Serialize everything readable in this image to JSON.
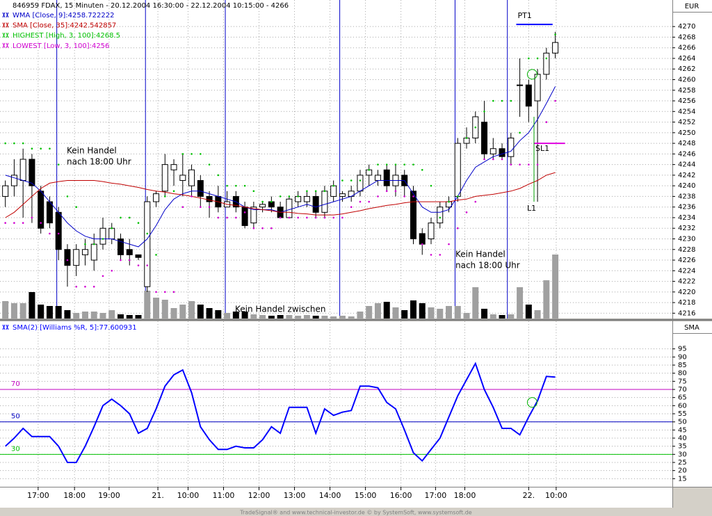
{
  "footer": "TradeSignal® and www.technical-investor.de © by SystemSoft, www.systemsoft.de",
  "chart_data": [
    {
      "type": "candlestick",
      "title": "846959  FDAX, 15 Minuten - 20.12.2004 16:30:00 - 22.12.2004 10:15:00 - 4266",
      "axis_label": "EUR",
      "xlim": [
        -0.6,
        75.2
      ],
      "ylim": [
        4215,
        4275
      ],
      "yticks": [
        4216,
        4218,
        4220,
        4222,
        4224,
        4226,
        4228,
        4230,
        4232,
        4234,
        4236,
        4238,
        4240,
        4242,
        4244,
        4246,
        4248,
        4250,
        4252,
        4254,
        4256,
        4258,
        4260,
        4262,
        4264,
        4266,
        4268,
        4270
      ],
      "grid": true,
      "open": [
        4238,
        4240,
        4241,
        4245,
        4239,
        4237,
        4235,
        4228,
        4225,
        4227,
        4226,
        4229,
        4230,
        4230,
        4228,
        4227,
        4221,
        4237,
        4239,
        4243,
        4241,
        4240,
        4241,
        4238,
        4238,
        4236,
        4238,
        4236,
        4233,
        4236,
        4237,
        4236,
        4234,
        4237,
        4237,
        4238,
        4235,
        4238,
        4238,
        4238,
        4239,
        4242,
        4241,
        4243,
        4240,
        4242,
        4239,
        4231,
        4230,
        4233,
        4236,
        4238,
        4248,
        4249,
        4252,
        4246,
        4247,
        4245.5,
        4259,
        4259,
        4256,
        4261,
        4265
      ],
      "high": [
        4241,
        4245,
        4247,
        4246,
        4240,
        4238,
        4236,
        4229,
        4229,
        4230,
        4231,
        4234,
        4233,
        4231,
        4230,
        4227,
        4238,
        4239,
        4246,
        4245,
        4246,
        4244,
        4242,
        4239,
        4240,
        4239,
        4239,
        4237,
        4237,
        4237,
        4238,
        4237,
        4238,
        4239,
        4239,
        4239,
        4240,
        4241,
        4239,
        4240,
        4243,
        4244,
        4243,
        4244,
        4244,
        4243,
        4240,
        4232,
        4234,
        4237,
        4238,
        4249,
        4251,
        4254,
        4256,
        4249,
        4248,
        4250,
        4264,
        4260,
        4262,
        4266,
        4269
      ],
      "low": [
        4236,
        4238,
        4234,
        4233,
        4231,
        4232,
        4226,
        4221,
        4223,
        4225,
        4224,
        4228,
        4229,
        4226,
        4225,
        4226,
        4220,
        4236,
        4238,
        4240,
        4238,
        4238,
        4236,
        4234,
        4235,
        4236,
        4235,
        4232,
        4232,
        4235,
        4235,
        4234,
        4234,
        4236,
        4236,
        4234,
        4234,
        4237,
        4237,
        4237,
        4238,
        4240,
        4240,
        4239,
        4238,
        4238,
        4229,
        4227,
        4229,
        4232,
        4235,
        4237,
        4247,
        4248,
        4245,
        4245,
        4245,
        4244,
        4253,
        4252,
        4237,
        4260,
        4264
      ],
      "close": [
        4240,
        4242,
        4245,
        4240,
        4232,
        4233,
        4228,
        4225,
        4228,
        4228,
        4229,
        4232,
        4232,
        4227,
        4227,
        4226.5,
        4237,
        4238.5,
        4244,
        4244,
        4242,
        4243,
        4238,
        4237,
        4236,
        4237,
        4236,
        4232.5,
        4236,
        4236.5,
        4236,
        4234,
        4237.5,
        4238,
        4238,
        4235,
        4239,
        4240,
        4238.5,
        4239,
        4242,
        4243,
        4242,
        4240,
        4242,
        4240,
        4230,
        4229,
        4233,
        4236,
        4237,
        4248,
        4249,
        4253,
        4246,
        4247,
        4245.5,
        4249,
        4259,
        4255,
        4261,
        4265,
        4267
      ],
      "up_color": "#ffffff",
      "down_color": "#000000",
      "volume": [
        25,
        22,
        22,
        38,
        20,
        18,
        18,
        12,
        8,
        10,
        10,
        8,
        12,
        6,
        5,
        5,
        40,
        30,
        27,
        15,
        20,
        25,
        20,
        15,
        12,
        8,
        10,
        10,
        6,
        5,
        4,
        5,
        5,
        4,
        5,
        4,
        4,
        3,
        4,
        3,
        10,
        18,
        22,
        24,
        16,
        12,
        26,
        22,
        16,
        14,
        18,
        18,
        8,
        45,
        14,
        6,
        5,
        6,
        45,
        20,
        12,
        55,
        92
      ],
      "volume_lim": [
        0,
        100
      ],
      "volume_colors": {
        "up": "#a0a0a0",
        "down": "#000000"
      },
      "series": [
        {
          "name": "WMA [Close, 9]:4258.722222",
          "color": "#0000c8",
          "style": "line",
          "values": [
            4242,
            4241.5,
            4241,
            4240.5,
            4239,
            4237,
            4235,
            4233,
            4231.5,
            4230.5,
            4230,
            4230,
            4230,
            4229.5,
            4229,
            4228.5,
            4230,
            4232.5,
            4235.5,
            4237.5,
            4238.5,
            4239,
            4239,
            4238.5,
            4238,
            4237.5,
            4237,
            4236,
            4235.5,
            4235.5,
            4235.5,
            4235,
            4235.5,
            4236,
            4236.5,
            4236,
            4236.5,
            4237,
            4237.5,
            4238,
            4239,
            4240,
            4241,
            4241,
            4241,
            4241,
            4238.5,
            4236,
            4235,
            4235,
            4235.5,
            4238,
            4241,
            4243.5,
            4244.5,
            4245.5,
            4246,
            4246.5,
            4248.5,
            4250,
            4252.5,
            4255.5,
            4258.7
          ]
        },
        {
          "name": "SMA [Close, 35]:4242.542857",
          "color": "#c00000",
          "style": "line",
          "values": [
            4234,
            4235,
            4236.5,
            4238,
            4239.5,
            4240.5,
            4240.8,
            4241,
            4241,
            4241,
            4241,
            4240.8,
            4240.5,
            4240.3,
            4240,
            4239.7,
            4239.3,
            4239,
            4238.8,
            4238.5,
            4238.3,
            4238,
            4237.7,
            4237.3,
            4237,
            4236.5,
            4236.3,
            4236,
            4235.7,
            4235.5,
            4235.3,
            4235,
            4235,
            4234.8,
            4234.7,
            4234.5,
            4234.5,
            4234.5,
            4234.7,
            4235,
            4235.3,
            4235.7,
            4236,
            4236.3,
            4236.5,
            4236.8,
            4237,
            4237,
            4237,
            4237,
            4237,
            4237.3,
            4237.5,
            4238,
            4238.2,
            4238.4,
            4238.7,
            4239,
            4239.5,
            4240.3,
            4241,
            4242,
            4242.5
          ]
        },
        {
          "name": "HIGHEST [High, 3, 100]:4268.5",
          "color": "#00c000",
          "style": "dots",
          "values": [
            4248,
            4248,
            4248,
            4247,
            4247,
            4247,
            4244,
            4238,
            4236,
            4229,
            4229,
            4230,
            4232,
            4234,
            4234,
            4233,
            4231,
            4227,
            4238,
            4239,
            4246,
            4246,
            4246,
            4244,
            4242,
            4240,
            4240,
            4240,
            4239,
            4237,
            4237,
            4238,
            4238,
            4238,
            4239,
            4239,
            4239,
            4240,
            4241,
            4241,
            4241,
            4243,
            4244,
            4244,
            4244,
            4244,
            4244,
            4243,
            4240,
            4234,
            4237,
            4238,
            4249,
            4251,
            4254,
            4256,
            4256,
            4256,
            4250,
            4264,
            4264,
            4264,
            4268.5
          ]
        },
        {
          "name": "LOWEST [Low, 3, 100]:4256",
          "color": "#d000d0",
          "style": "dots",
          "values": [
            4233,
            4233,
            4233,
            4234,
            4233,
            4231,
            4231,
            4226,
            4221,
            4221,
            4221,
            4223,
            4224,
            4226,
            4226,
            4225,
            4225,
            4220,
            4220,
            4220,
            4236,
            4238,
            4236,
            4236,
            4234,
            4234,
            4234,
            4235,
            4232,
            4232,
            4232,
            4234,
            4234,
            4234,
            4234,
            4234,
            4234,
            4234,
            4234,
            4236,
            4237,
            4237,
            4238,
            4239,
            4239,
            4238,
            4238,
            4229,
            4227,
            4227,
            4229,
            4232,
            4235,
            4237,
            4245,
            4245,
            4245,
            4244,
            4244,
            4244,
            4244,
            4252,
            4256
          ]
        }
      ],
      "separators": [
        5.8,
        15.8,
        24.8,
        37.7,
        50.7,
        56.6
      ],
      "separator_color": "#0000c8",
      "levels": [
        {
          "label": "PT1",
          "value": 4270.4,
          "x": [
            57.6,
            61.7
          ],
          "color": "#0000ff"
        },
        {
          "label": "SL1",
          "value": 4248,
          "x": [
            59.6,
            63.1
          ],
          "color": "#e000e0"
        }
      ],
      "stop_line": {
        "label": "L1",
        "values": [
          4253,
          4237
        ],
        "x": 59.6,
        "color": "#00a000"
      },
      "signal": {
        "x": 59.4,
        "value": 4261,
        "color": "#00b000"
      },
      "annotations": [
        [
          "Kein Handel",
          "nach 18:00 Uhr"
        ],
        [
          "Kein Handel",
          "nach 18:00 Uhr"
        ],
        [
          "Kein Handel zwischen"
        ]
      ]
    },
    {
      "type": "line",
      "axis_label": "SMA",
      "xlim": [
        -0.6,
        75.2
      ],
      "ylim": [
        10,
        112
      ],
      "yticks": [
        15,
        20,
        25,
        30,
        35,
        40,
        45,
        50,
        55,
        60,
        65,
        70,
        75,
        80,
        85,
        90,
        95
      ],
      "xticks": [
        {
          "value": 3.7,
          "label": "17:00"
        },
        {
          "value": 7.8,
          "label": "18:00"
        },
        {
          "value": 11.7,
          "label": "19:00"
        },
        {
          "value": 17.2,
          "label": "21."
        },
        {
          "value": 20.6,
          "label": "10:00"
        },
        {
          "value": 24.6,
          "label": "11:00"
        },
        {
          "value": 28.6,
          "label": "12:00"
        },
        {
          "value": 32.6,
          "label": "13:00"
        },
        {
          "value": 36.6,
          "label": "14:00"
        },
        {
          "value": 40.6,
          "label": "15:00"
        },
        {
          "value": 44.6,
          "label": "16:00"
        },
        {
          "value": 48.5,
          "label": "17:00"
        },
        {
          "value": 51.8,
          "label": "18:00"
        },
        {
          "value": 59.0,
          "label": "22."
        },
        {
          "value": 62.1,
          "label": "10:00"
        }
      ],
      "grid": true,
      "series": [
        {
          "name": "SMA(2) [Williams %R, 5]:77.600931",
          "color": "#0000ff",
          "values": [
            35,
            40,
            46,
            41,
            41,
            41,
            35,
            25,
            25,
            35,
            47,
            60,
            64,
            60,
            55,
            43,
            46,
            58,
            72,
            79,
            82,
            68,
            47,
            39,
            33,
            33,
            35,
            34,
            34,
            39,
            47,
            43,
            59,
            59,
            59,
            43,
            58,
            54,
            56,
            57,
            72,
            72,
            71,
            62,
            58,
            45,
            31,
            26,
            33,
            40,
            53,
            66,
            76,
            86,
            70,
            59,
            46,
            46,
            42,
            53,
            63,
            78,
            77.600931
          ]
        }
      ],
      "hlines": [
        {
          "value": 70,
          "color": "#c000c0"
        },
        {
          "value": 50,
          "color": "#0000c0"
        },
        {
          "value": 30,
          "color": "#00c000"
        }
      ],
      "signal": {
        "x": 59.4,
        "value": 62,
        "color": "#00b000"
      }
    }
  ]
}
